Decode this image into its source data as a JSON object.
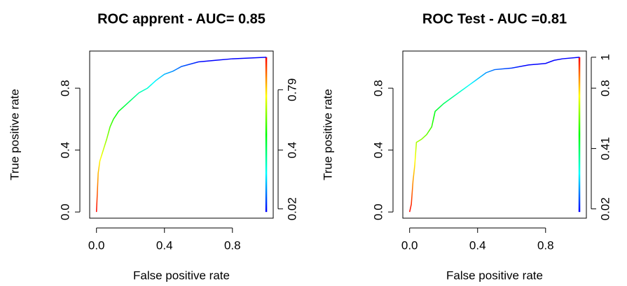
{
  "chart_data": [
    {
      "type": "line",
      "title": "ROC apprent - AUC= 0.85",
      "xlabel": "False positive rate",
      "ylabel": "True positive rate",
      "colorize": true,
      "colors": [
        "#ff0000",
        "#ffff00",
        "#00ff00",
        "#00ffff",
        "#0000ff"
      ],
      "x": [
        0,
        0.005,
        0.01,
        0.02,
        0.04,
        0.06,
        0.08,
        0.1,
        0.13,
        0.16,
        0.2,
        0.25,
        0.3,
        0.35,
        0.4,
        0.45,
        0.5,
        0.6,
        0.7,
        0.8,
        0.9,
        1
      ],
      "values": [
        0,
        0.12,
        0.25,
        0.33,
        0.4,
        0.47,
        0.55,
        0.6,
        0.65,
        0.68,
        0.72,
        0.77,
        0.8,
        0.85,
        0.89,
        0.91,
        0.94,
        0.97,
        0.98,
        0.99,
        0.995,
        1
      ],
      "xlim": [
        -0.04,
        1.04
      ],
      "ylim": [
        -0.04,
        1.04
      ],
      "xticks": [
        {
          "value": 0,
          "label": "0.0"
        },
        0.4,
        0.8
      ],
      "yticks": [
        {
          "value": 0,
          "label": "0.0"
        },
        0.4,
        0.8
      ],
      "y2lim": [
        -0.04,
        1.04
      ],
      "y2ticks": [
        0.02,
        0.4,
        0.79
      ]
    },
    {
      "type": "line",
      "title": "ROC Test - AUC =0.81",
      "xlabel": "False positive rate",
      "ylabel": "True positive rate",
      "colorize": true,
      "colors": [
        "#ff0000",
        "#ffff00",
        "#00ff00",
        "#00ffff",
        "#0000ff"
      ],
      "x": [
        0,
        0.01,
        0.02,
        0.03,
        0.04,
        0.07,
        0.1,
        0.13,
        0.15,
        0.2,
        0.25,
        0.3,
        0.35,
        0.4,
        0.45,
        0.5,
        0.6,
        0.7,
        0.8,
        0.85,
        0.9,
        1
      ],
      "values": [
        0,
        0.05,
        0.2,
        0.3,
        0.45,
        0.47,
        0.5,
        0.55,
        0.65,
        0.7,
        0.74,
        0.78,
        0.82,
        0.86,
        0.9,
        0.92,
        0.93,
        0.95,
        0.96,
        0.98,
        0.99,
        1
      ],
      "xlim": [
        -0.04,
        1.04
      ],
      "ylim": [
        -0.04,
        1.04
      ],
      "xticks": [
        {
          "value": 0,
          "label": "0.0"
        },
        0.4,
        0.8
      ],
      "yticks": [
        {
          "value": 0,
          "label": "0.0"
        },
        0.4,
        0.8
      ],
      "y2lim": [
        -0.04,
        1.04
      ],
      "y2ticks": [
        0.02,
        0.41,
        0.8,
        1
      ]
    }
  ]
}
